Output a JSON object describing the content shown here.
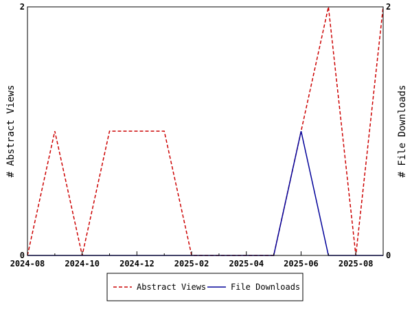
{
  "chart_data": {
    "type": "line",
    "x": [
      "2024-08",
      "2024-09",
      "2024-10",
      "2024-11",
      "2024-12",
      "2025-01",
      "2025-02",
      "2025-03",
      "2025-04",
      "2025-05",
      "2025-06",
      "2025-07",
      "2025-08",
      "2025-09"
    ],
    "x_tick_labels": [
      "2024-08",
      "2024-10",
      "2024-12",
      "2025-02",
      "2025-04",
      "2025-06",
      "2025-08"
    ],
    "series": [
      {
        "name": "Abstract Views",
        "axis": "left",
        "color": "#cc0000",
        "style": "dashed",
        "values": [
          0,
          1,
          0,
          1,
          1,
          1,
          0,
          0,
          0,
          0,
          1,
          2,
          0,
          2
        ]
      },
      {
        "name": "File Downloads",
        "axis": "right",
        "color": "#000099",
        "style": "solid",
        "values": [
          0,
          0,
          0,
          0,
          0,
          0,
          0,
          0,
          0,
          0,
          1,
          0,
          0,
          0
        ]
      }
    ],
    "ylabel_left": "# Abstract Views",
    "ylabel_right": "# File Downloads",
    "ylim_left": [
      0,
      2
    ],
    "ylim_right": [
      0,
      2
    ],
    "y_tick_labels_left": [
      "0",
      "2"
    ],
    "y_tick_labels_right": [
      "0",
      "2"
    ],
    "grid": false,
    "legend_position": "bottom"
  }
}
